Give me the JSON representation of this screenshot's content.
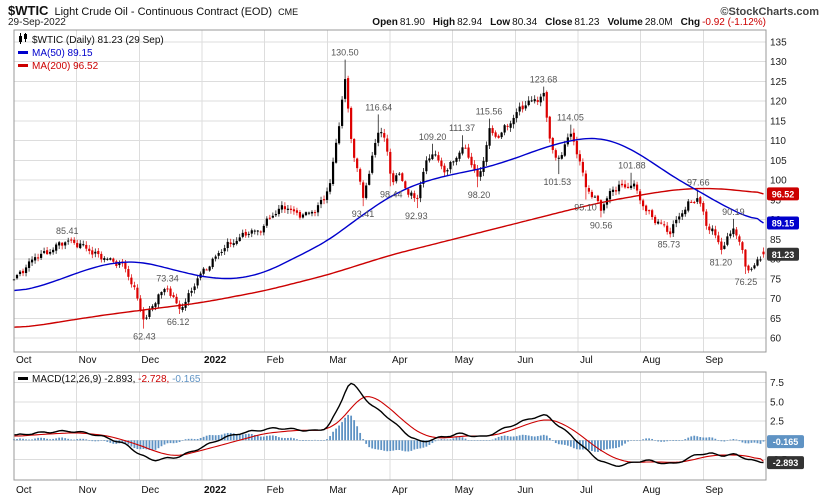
{
  "header": {
    "symbol": "$WTIC",
    "name": "Light Crude Oil - Continuous Contract (EOD)",
    "exchange": "CME",
    "credit": "©StockCharts.com",
    "date": "29-Sep-2022",
    "quote": [
      {
        "label": "Open",
        "value": "81.90"
      },
      {
        "label": "High",
        "value": "82.94"
      },
      {
        "label": "Low",
        "value": "80.34"
      },
      {
        "label": "Close",
        "value": "81.23"
      },
      {
        "label": "Volume",
        "value": "28.0M"
      },
      {
        "label": "Chg",
        "value": "-0.92 (-1.12%)"
      }
    ]
  },
  "main_legend": {
    "series": "$WTIC (Daily) 81.23 (29 Sep)",
    "ma50": "MA(50) 89.15",
    "ma200": "MA(200) 96.52"
  },
  "macd_legend": {
    "label": "MACD(12,26,9)",
    "macd_value": "-2.893,",
    "signal_value": "-2.728,",
    "hist_value": "-0.165"
  },
  "colors": {
    "up": "#000000",
    "down": "#dd0000",
    "ma50": "#0000cc",
    "ma200": "#cc0000",
    "histogram": "#5f93c4",
    "negative": "#cc0000",
    "grid": "#dddddd",
    "border": "#999999",
    "axis_text": "#222222",
    "annotation": "#555555",
    "last_badge": "#333333",
    "macd_badge": "#333333"
  },
  "chart_data": [
    {
      "type": "candlestick",
      "title": "$WTIC (Daily)",
      "x_labels": [
        "Oct",
        "Nov",
        "Dec",
        "2022",
        "Feb",
        "Mar",
        "Apr",
        "May",
        "Jun",
        "Jul",
        "Aug",
        "Sep"
      ],
      "y_ticks": [
        60,
        65,
        70,
        75,
        80,
        85,
        90,
        95,
        100,
        105,
        110,
        115,
        120,
        125,
        130,
        135
      ],
      "y_range": [
        56.5,
        138
      ],
      "close_keyframes": [
        [
          0,
          75.0
        ],
        [
          0.15,
          77.5
        ],
        [
          0.35,
          80.5
        ],
        [
          0.55,
          82.0
        ],
        [
          0.75,
          83.9
        ],
        [
          0.9,
          84.6
        ],
        [
          1.05,
          83.8
        ],
        [
          1.25,
          81.5
        ],
        [
          1.45,
          80.5
        ],
        [
          1.6,
          79.0
        ],
        [
          1.75,
          78.5
        ],
        [
          1.9,
          73.5
        ],
        [
          2.0,
          68.0
        ],
        [
          2.08,
          64.0
        ],
        [
          2.15,
          66.5
        ],
        [
          2.3,
          71.0
        ],
        [
          2.45,
          72.5
        ],
        [
          2.55,
          69.5
        ],
        [
          2.65,
          67.5
        ],
        [
          2.8,
          71.0
        ],
        [
          2.95,
          75.5
        ],
        [
          3.1,
          78.5
        ],
        [
          3.3,
          82.0
        ],
        [
          3.5,
          84.5
        ],
        [
          3.7,
          86.5
        ],
        [
          3.9,
          87.0
        ],
        [
          4.05,
          90.0
        ],
        [
          4.2,
          92.0
        ],
        [
          4.35,
          93.5
        ],
        [
          4.5,
          91.5
        ],
        [
          4.65,
          91.0
        ],
        [
          4.8,
          92.5
        ],
        [
          4.95,
          95.5
        ],
        [
          5.05,
          99.5
        ],
        [
          5.15,
          110.0
        ],
        [
          5.28,
          126.0
        ],
        [
          5.38,
          110.5
        ],
        [
          5.48,
          102.0
        ],
        [
          5.57,
          95.5
        ],
        [
          5.68,
          103.0
        ],
        [
          5.82,
          113.5
        ],
        [
          5.92,
          110.0
        ],
        [
          6.02,
          100.0
        ],
        [
          6.15,
          101.5
        ],
        [
          6.3,
          96.5
        ],
        [
          6.42,
          94.5
        ],
        [
          6.55,
          103.5
        ],
        [
          6.68,
          107.5
        ],
        [
          6.85,
          102.0
        ],
        [
          7.0,
          104.5
        ],
        [
          7.15,
          108.5
        ],
        [
          7.28,
          105.0
        ],
        [
          7.42,
          100.0
        ],
        [
          7.58,
          112.5
        ],
        [
          7.7,
          110.5
        ],
        [
          7.85,
          113.5
        ],
        [
          8.0,
          116.5
        ],
        [
          8.15,
          119.0
        ],
        [
          8.3,
          120.5
        ],
        [
          8.45,
          121.5
        ],
        [
          8.55,
          110.5
        ],
        [
          8.67,
          104.0
        ],
        [
          8.8,
          110.0
        ],
        [
          8.88,
          111.5
        ],
        [
          9.0,
          106.5
        ],
        [
          9.12,
          98.5
        ],
        [
          9.25,
          96.0
        ],
        [
          9.37,
          92.5
        ],
        [
          9.5,
          96.5
        ],
        [
          9.65,
          99.0
        ],
        [
          9.78,
          97.5
        ],
        [
          9.86,
          99.5
        ],
        [
          10.05,
          93.5
        ],
        [
          10.2,
          90.0
        ],
        [
          10.35,
          88.5
        ],
        [
          10.45,
          86.8
        ],
        [
          10.6,
          90.5
        ],
        [
          10.75,
          93.5
        ],
        [
          10.92,
          96.0
        ],
        [
          11.05,
          88.5
        ],
        [
          11.15,
          87.0
        ],
        [
          11.28,
          82.8
        ],
        [
          11.4,
          85.5
        ],
        [
          11.48,
          88.0
        ],
        [
          11.58,
          84.0
        ],
        [
          11.68,
          78.0
        ],
        [
          11.78,
          77.5
        ],
        [
          11.88,
          80.0
        ],
        [
          11.96,
          81.2
        ]
      ],
      "ma50_keyframes": [
        [
          0,
          71.5
        ],
        [
          0.5,
          73.5
        ],
        [
          1,
          76.5
        ],
        [
          1.5,
          79.0
        ],
        [
          2,
          79.5
        ],
        [
          2.5,
          77.5
        ],
        [
          3,
          75.5
        ],
        [
          3.5,
          74.8
        ],
        [
          4,
          76.5
        ],
        [
          4.5,
          80.5
        ],
        [
          5,
          84.5
        ],
        [
          5.5,
          90.5
        ],
        [
          6,
          96.0
        ],
        [
          6.5,
          99.5
        ],
        [
          7,
          101.5
        ],
        [
          7.5,
          103.0
        ],
        [
          8,
          105.5
        ],
        [
          8.5,
          108.5
        ],
        [
          9,
          110.5
        ],
        [
          9.3,
          110.8
        ],
        [
          9.6,
          109.8
        ],
        [
          10,
          106.5
        ],
        [
          10.5,
          101.0
        ],
        [
          11,
          96.5
        ],
        [
          11.5,
          92.0
        ],
        [
          11.96,
          89.15
        ]
      ],
      "ma200_keyframes": [
        [
          0,
          62.5
        ],
        [
          0.5,
          63.5
        ],
        [
          1,
          64.8
        ],
        [
          1.5,
          66.0
        ],
        [
          2,
          67.0
        ],
        [
          2.5,
          68.0
        ],
        [
          3,
          69.0
        ],
        [
          3.5,
          70.5
        ],
        [
          4,
          72.0
        ],
        [
          4.5,
          74.0
        ],
        [
          5,
          76.0
        ],
        [
          5.5,
          78.5
        ],
        [
          6,
          81.0
        ],
        [
          6.5,
          83.0
        ],
        [
          7,
          85.0
        ],
        [
          7.5,
          87.0
        ],
        [
          8,
          89.0
        ],
        [
          8.5,
          91.0
        ],
        [
          9,
          93.0
        ],
        [
          9.5,
          94.8
        ],
        [
          10,
          96.2
        ],
        [
          10.4,
          97.3
        ],
        [
          10.8,
          97.9
        ],
        [
          11.2,
          97.9
        ],
        [
          11.6,
          97.4
        ],
        [
          11.96,
          96.52
        ]
      ],
      "last_values": {
        "close": 81.23,
        "ma50": 89.15,
        "ma200": 96.52
      },
      "last_ohlc": {
        "open": 81.9,
        "high": 82.94,
        "low": 80.34,
        "close": 81.23
      },
      "annotations": [
        {
          "x": 0.85,
          "v": 85.41,
          "text": "85.41",
          "pos": "above"
        },
        {
          "x": 2.45,
          "v": 73.34,
          "text": "73.34",
          "pos": "above"
        },
        {
          "x": 2.08,
          "v": 62.43,
          "text": "62.43",
          "pos": "below"
        },
        {
          "x": 2.62,
          "v": 66.12,
          "text": "66.12",
          "pos": "below"
        },
        {
          "x": 5.28,
          "v": 130.5,
          "text": "130.50",
          "pos": "above"
        },
        {
          "x": 5.57,
          "v": 93.41,
          "text": "93.41",
          "pos": "below"
        },
        {
          "x": 5.82,
          "v": 116.64,
          "text": "116.64",
          "pos": "above"
        },
        {
          "x": 6.02,
          "v": 98.44,
          "text": "98.44",
          "pos": "below"
        },
        {
          "x": 6.42,
          "v": 92.93,
          "text": "92.93",
          "pos": "below"
        },
        {
          "x": 6.68,
          "v": 109.2,
          "text": "109.20",
          "pos": "above"
        },
        {
          "x": 7.15,
          "v": 111.37,
          "text": "111.37",
          "pos": "above"
        },
        {
          "x": 7.42,
          "v": 98.2,
          "text": "98.20",
          "pos": "below"
        },
        {
          "x": 7.58,
          "v": 115.56,
          "text": "115.56",
          "pos": "above"
        },
        {
          "x": 8.45,
          "v": 123.68,
          "text": "123.68",
          "pos": "above"
        },
        {
          "x": 8.67,
          "v": 101.53,
          "text": "101.53",
          "pos": "below"
        },
        {
          "x": 8.88,
          "v": 114.05,
          "text": "114.05",
          "pos": "above"
        },
        {
          "x": 9.12,
          "v": 95.1,
          "text": "95.10",
          "pos": "below"
        },
        {
          "x": 9.37,
          "v": 90.56,
          "text": "90.56",
          "pos": "below"
        },
        {
          "x": 9.86,
          "v": 101.88,
          "text": "101.88",
          "pos": "above"
        },
        {
          "x": 10.45,
          "v": 85.73,
          "text": "85.73",
          "pos": "below"
        },
        {
          "x": 10.92,
          "v": 97.66,
          "text": "97.66",
          "pos": "above"
        },
        {
          "x": 11.28,
          "v": 81.2,
          "text": "81.20",
          "pos": "below"
        },
        {
          "x": 11.48,
          "v": 90.19,
          "text": "90.19",
          "pos": "above"
        },
        {
          "x": 11.68,
          "v": 76.25,
          "text": "76.25",
          "pos": "below"
        }
      ],
      "badges": [
        {
          "text": "96.52",
          "v": 96.52,
          "color_key": "ma200"
        },
        {
          "text": "89.15",
          "v": 89.15,
          "color_key": "ma50"
        },
        {
          "text": "81.23",
          "v": 81.23,
          "color_key": "last_badge"
        }
      ]
    },
    {
      "type": "macd",
      "params": "12,26,9",
      "y_ticks": [
        7.5,
        5,
        2.5,
        0,
        -2.5
      ],
      "values": {
        "macd": -2.893,
        "signal": -2.728,
        "hist": -0.165
      },
      "macd_keyframes": [
        [
          0,
          0.6
        ],
        [
          0.3,
          0.9
        ],
        [
          0.6,
          1.1
        ],
        [
          0.9,
          1.2
        ],
        [
          1.2,
          0.9
        ],
        [
          1.5,
          0.3
        ],
        [
          1.8,
          -0.6
        ],
        [
          2.0,
          -1.8
        ],
        [
          2.2,
          -2.6
        ],
        [
          2.4,
          -2.4
        ],
        [
          2.6,
          -2.2
        ],
        [
          2.8,
          -1.6
        ],
        [
          3.0,
          -0.9
        ],
        [
          3.3,
          0.2
        ],
        [
          3.6,
          0.9
        ],
        [
          3.9,
          1.3
        ],
        [
          4.2,
          1.6
        ],
        [
          4.5,
          1.4
        ],
        [
          4.8,
          1.2
        ],
        [
          5.0,
          1.6
        ],
        [
          5.2,
          4.5
        ],
        [
          5.35,
          7.8
        ],
        [
          5.5,
          6.5
        ],
        [
          5.7,
          4.5
        ],
        [
          5.9,
          3.5
        ],
        [
          6.1,
          2.0
        ],
        [
          6.3,
          0.6
        ],
        [
          6.5,
          -0.3
        ],
        [
          6.7,
          0.2
        ],
        [
          6.9,
          0.5
        ],
        [
          7.1,
          0.9
        ],
        [
          7.3,
          0.6
        ],
        [
          7.5,
          0.4
        ],
        [
          7.7,
          1.1
        ],
        [
          7.9,
          1.8
        ],
        [
          8.1,
          2.4
        ],
        [
          8.3,
          3.0
        ],
        [
          8.5,
          3.3
        ],
        [
          8.7,
          1.8
        ],
        [
          8.9,
          0.6
        ],
        [
          9.1,
          -1.0
        ],
        [
          9.3,
          -2.4
        ],
        [
          9.5,
          -3.2
        ],
        [
          9.7,
          -3.3
        ],
        [
          9.9,
          -2.8
        ],
        [
          10.1,
          -2.6
        ],
        [
          10.3,
          -2.9
        ],
        [
          10.5,
          -3.1
        ],
        [
          10.7,
          -2.6
        ],
        [
          10.9,
          -1.8
        ],
        [
          11.1,
          -1.7
        ],
        [
          11.3,
          -2.0
        ],
        [
          11.5,
          -1.8
        ],
        [
          11.7,
          -2.4
        ],
        [
          11.85,
          -2.8
        ],
        [
          11.96,
          -2.893
        ]
      ],
      "signal_keyframes": [
        [
          0,
          0.5
        ],
        [
          0.5,
          0.8
        ],
        [
          1,
          1.0
        ],
        [
          1.5,
          0.6
        ],
        [
          2,
          -0.6
        ],
        [
          2.3,
          -1.6
        ],
        [
          2.6,
          -2.1
        ],
        [
          3,
          -1.3
        ],
        [
          3.5,
          -0.2
        ],
        [
          4,
          0.9
        ],
        [
          4.5,
          1.3
        ],
        [
          5,
          1.3
        ],
        [
          5.3,
          3.2
        ],
        [
          5.5,
          5.6
        ],
        [
          5.7,
          5.9
        ],
        [
          5.9,
          4.8
        ],
        [
          6.1,
          3.4
        ],
        [
          6.3,
          1.9
        ],
        [
          6.5,
          0.8
        ],
        [
          6.7,
          0.3
        ],
        [
          6.9,
          0.3
        ],
        [
          7.1,
          0.5
        ],
        [
          7.3,
          0.6
        ],
        [
          7.5,
          0.5
        ],
        [
          7.7,
          0.7
        ],
        [
          7.9,
          1.2
        ],
        [
          8.1,
          1.8
        ],
        [
          8.3,
          2.4
        ],
        [
          8.5,
          2.8
        ],
        [
          8.7,
          2.4
        ],
        [
          8.9,
          1.5
        ],
        [
          9.1,
          0.3
        ],
        [
          9.3,
          -1.0
        ],
        [
          9.5,
          -2.0
        ],
        [
          9.7,
          -2.7
        ],
        [
          9.9,
          -2.9
        ],
        [
          10.1,
          -2.8
        ],
        [
          10.3,
          -2.8
        ],
        [
          10.5,
          -2.9
        ],
        [
          10.7,
          -2.8
        ],
        [
          10.9,
          -2.4
        ],
        [
          11.1,
          -2.0
        ],
        [
          11.3,
          -1.9
        ],
        [
          11.5,
          -1.9
        ],
        [
          11.7,
          -2.0
        ],
        [
          11.85,
          -2.3
        ],
        [
          11.96,
          -2.728
        ]
      ],
      "badges": [
        {
          "text": "-0.165",
          "v": -0.165,
          "color_key": "histogram"
        },
        {
          "text": "-2.893",
          "v": -2.893,
          "color_key": "macd_badge"
        }
      ]
    }
  ]
}
